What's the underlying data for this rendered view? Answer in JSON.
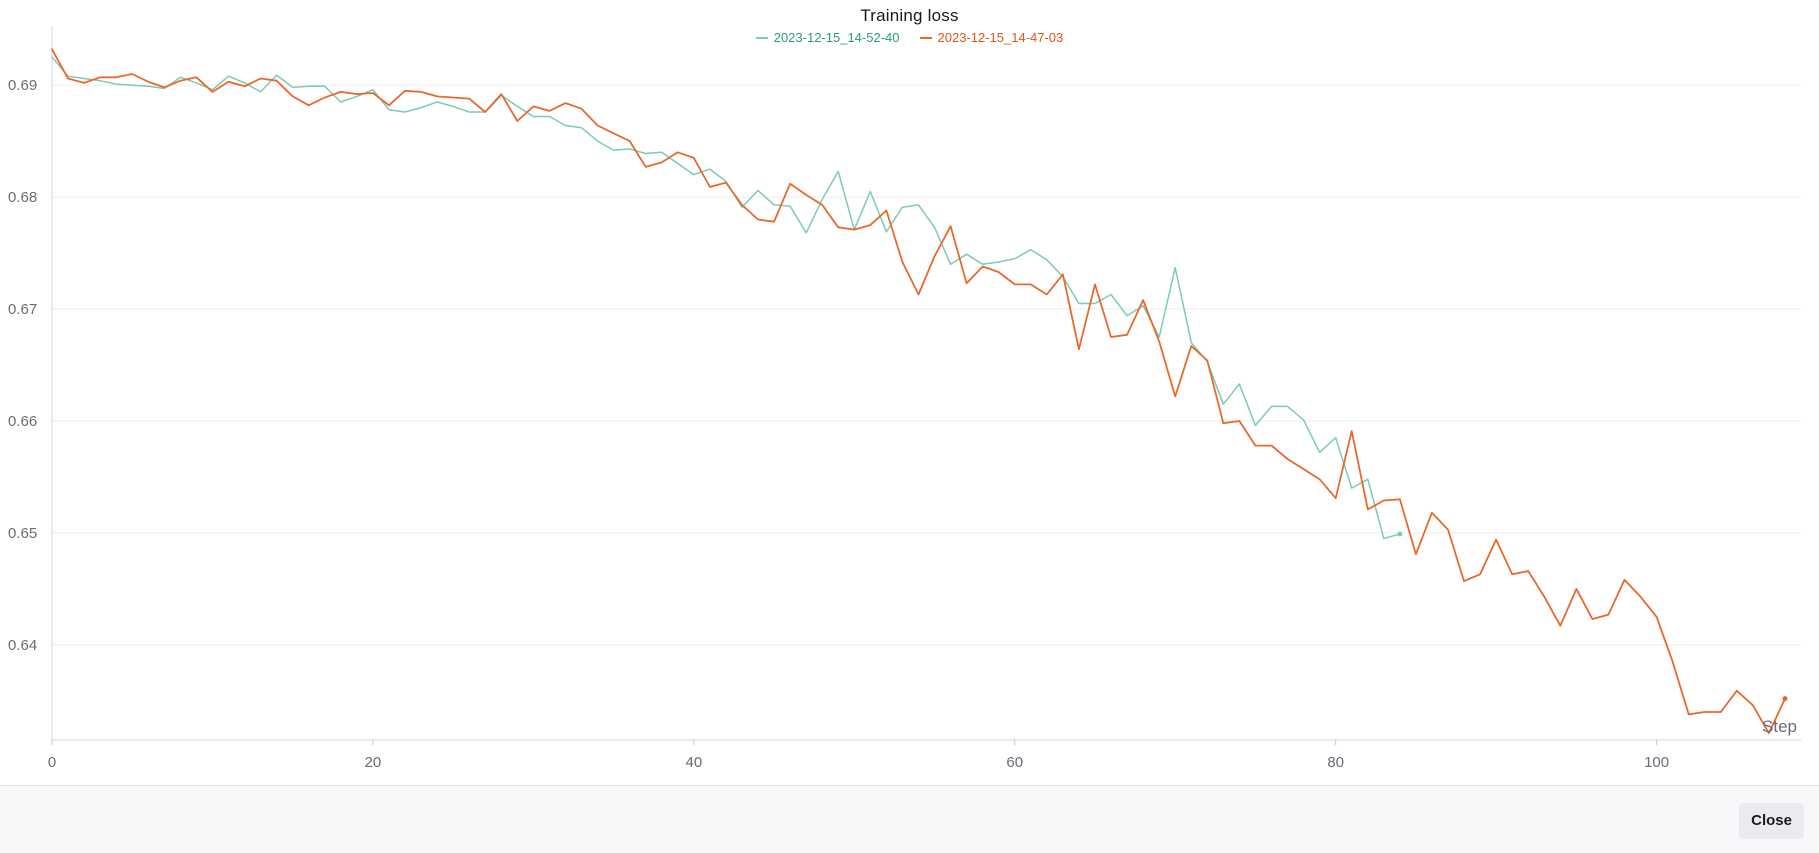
{
  "chart_data": {
    "type": "line",
    "title": "Training loss",
    "xlabel": "Step",
    "ylabel": "",
    "xlim": [
      0,
      109
    ],
    "ylim": [
      0.6315,
      0.6935
    ],
    "x_ticks": [
      0,
      20,
      40,
      60,
      80,
      100
    ],
    "y_ticks": [
      0.64,
      0.65,
      0.66,
      0.67,
      0.68,
      0.69
    ],
    "grid": true,
    "legend_position": "top-center",
    "series": [
      {
        "name": "2023-12-15_14-52-40",
        "color": "#7ccbb3",
        "label_color": "#2a9a80",
        "x": [
          0,
          1,
          2,
          3,
          4,
          5,
          6,
          7,
          8,
          9,
          10,
          11,
          12,
          13,
          14,
          15,
          16,
          17,
          18,
          19,
          20,
          21,
          22,
          23,
          24,
          25,
          26,
          27,
          28,
          29,
          30,
          31,
          32,
          33,
          34,
          35,
          36,
          37,
          38,
          39,
          40,
          41,
          42,
          43,
          44,
          45,
          46,
          47,
          48,
          49,
          50,
          51,
          52,
          53,
          54,
          55,
          56,
          57,
          58,
          59,
          60,
          61,
          62,
          63,
          64,
          65,
          66,
          67,
          68,
          69,
          70,
          71,
          72,
          73,
          74,
          75,
          76,
          77,
          78,
          79,
          80,
          81,
          82,
          83,
          84
        ],
        "y": [
          0.6925,
          0.6908,
          0.6906,
          0.6904,
          0.6901,
          0.69,
          0.6899,
          0.6897,
          0.6907,
          0.6902,
          0.6896,
          0.6908,
          0.6902,
          0.6894,
          0.6909,
          0.6898,
          0.6899,
          0.6899,
          0.6885,
          0.689,
          0.6896,
          0.6878,
          0.6876,
          0.688,
          0.6885,
          0.6881,
          0.6876,
          0.6876,
          0.6891,
          0.6881,
          0.6872,
          0.6872,
          0.6864,
          0.6862,
          0.685,
          0.6842,
          0.6843,
          0.6839,
          0.684,
          0.683,
          0.682,
          0.6825,
          0.6814,
          0.6791,
          0.6806,
          0.6793,
          0.6792,
          0.6768,
          0.6798,
          0.6823,
          0.6771,
          0.6805,
          0.6769,
          0.6791,
          0.6793,
          0.6773,
          0.674,
          0.6749,
          0.674,
          0.6742,
          0.6745,
          0.6753,
          0.6744,
          0.6729,
          0.6705,
          0.6705,
          0.6713,
          0.6694,
          0.6703,
          0.6675,
          0.6737,
          0.667,
          0.6653,
          0.6615,
          0.6633,
          0.6596,
          0.6613,
          0.6613,
          0.6601,
          0.6572,
          0.6585,
          0.654,
          0.6548,
          0.6495,
          0.6499
        ]
      },
      {
        "name": "2023-12-15_14-47-03",
        "color": "#e8692e",
        "label_color": "#d9581e",
        "x": [
          0,
          1,
          2,
          3,
          4,
          5,
          6,
          7,
          8,
          9,
          10,
          11,
          12,
          13,
          14,
          15,
          16,
          17,
          18,
          19,
          20,
          21,
          22,
          23,
          24,
          25,
          26,
          27,
          28,
          29,
          30,
          31,
          32,
          33,
          34,
          35,
          36,
          37,
          38,
          39,
          40,
          41,
          42,
          43,
          44,
          45,
          46,
          47,
          48,
          49,
          50,
          51,
          52,
          53,
          54,
          55,
          56,
          57,
          58,
          59,
          60,
          61,
          62,
          63,
          64,
          65,
          66,
          67,
          68,
          69,
          70,
          71,
          72,
          73,
          74,
          75,
          76,
          77,
          78,
          79,
          80,
          81,
          82,
          83,
          84,
          85,
          86,
          87,
          88,
          89,
          90,
          91,
          92,
          93,
          94,
          95,
          96,
          97,
          98,
          99,
          100,
          101,
          102,
          103,
          104,
          105,
          106,
          107,
          108
        ],
        "y": [
          0.6932,
          0.6906,
          0.6902,
          0.6907,
          0.6907,
          0.691,
          0.6903,
          0.6898,
          0.6904,
          0.6907,
          0.6894,
          0.6903,
          0.6899,
          0.6906,
          0.6904,
          0.689,
          0.6882,
          0.6889,
          0.6894,
          0.6892,
          0.6893,
          0.6882,
          0.6895,
          0.6894,
          0.689,
          0.6889,
          0.6888,
          0.6876,
          0.6892,
          0.6868,
          0.6881,
          0.6877,
          0.6884,
          0.6879,
          0.6864,
          0.6857,
          0.685,
          0.6827,
          0.6831,
          0.684,
          0.6835,
          0.6809,
          0.6813,
          0.6793,
          0.678,
          0.6778,
          0.6812,
          0.6802,
          0.6793,
          0.6773,
          0.6771,
          0.6775,
          0.6788,
          0.6742,
          0.6713,
          0.6747,
          0.6774,
          0.6723,
          0.6738,
          0.6733,
          0.6722,
          0.6722,
          0.6713,
          0.6731,
          0.6664,
          0.6722,
          0.6675,
          0.6677,
          0.6708,
          0.6671,
          0.6622,
          0.6667,
          0.6654,
          0.6598,
          0.66,
          0.6578,
          0.6578,
          0.6566,
          0.6557,
          0.6548,
          0.6531,
          0.6591,
          0.6521,
          0.6529,
          0.653,
          0.6481,
          0.6518,
          0.6503,
          0.6457,
          0.6463,
          0.6494,
          0.6463,
          0.6466,
          0.6443,
          0.6417,
          0.645,
          0.6423,
          0.6427,
          0.6458,
          0.6443,
          0.6425,
          0.6385,
          0.6338,
          0.634,
          0.634,
          0.6359,
          0.6346,
          0.6321,
          0.6352
        ]
      }
    ]
  },
  "footer": {
    "close_label": "Close"
  }
}
